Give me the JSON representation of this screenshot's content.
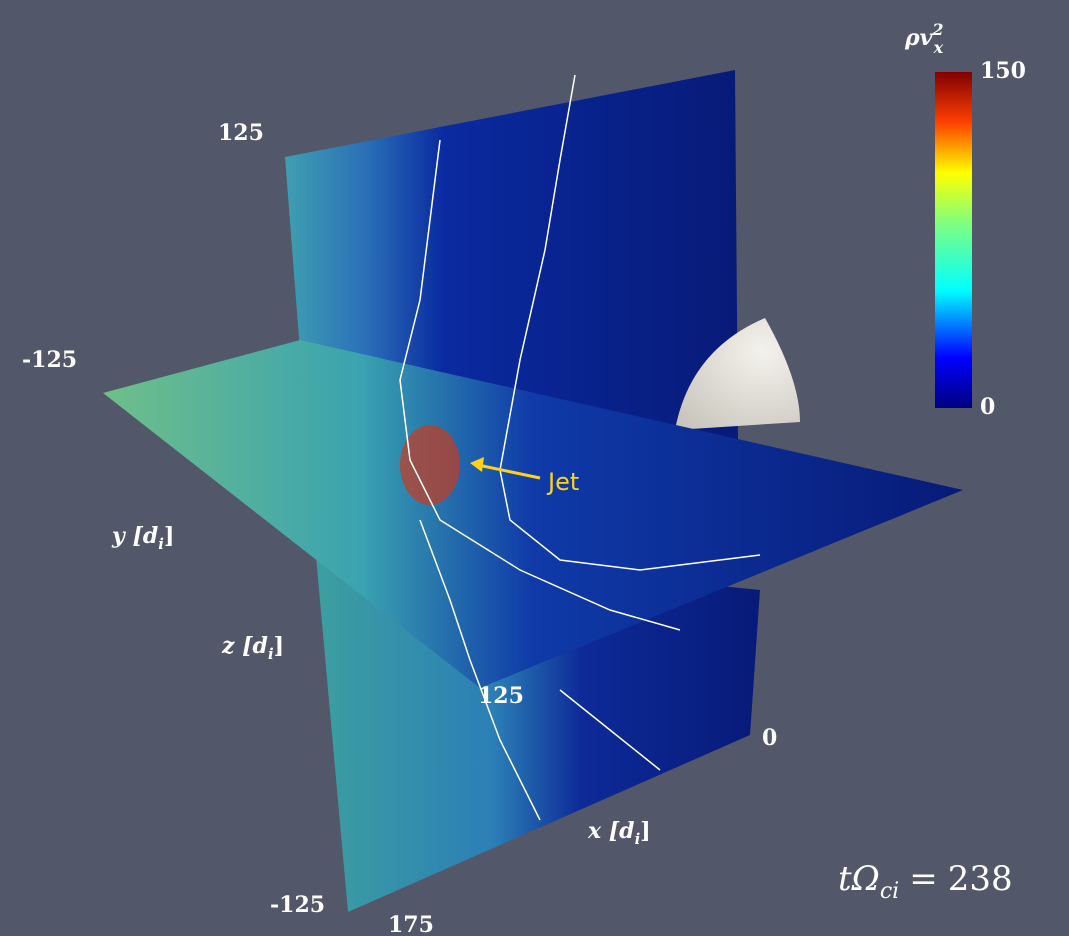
{
  "colorbar": {
    "symbol": "ρv",
    "superscript": "2",
    "subscript": "x",
    "min": 0,
    "max": 150,
    "ticks": [
      150,
      0
    ]
  },
  "axis_labels": {
    "y": {
      "main": "y [d",
      "sub": "i",
      "close": "]"
    },
    "z": {
      "main": "z [d",
      "sub": "i",
      "close": "]"
    },
    "x": {
      "main": "x [d",
      "sub": "i",
      "close": "]"
    }
  },
  "tick_labels": {
    "top": "125",
    "left": "-125",
    "front": "125",
    "right": "0",
    "bottom_left": "-125",
    "bottom": "175"
  },
  "annotation": "Jet",
  "time": {
    "symbol": "tΩ",
    "sub": "ci",
    "relation": "=",
    "value": 238
  }
}
